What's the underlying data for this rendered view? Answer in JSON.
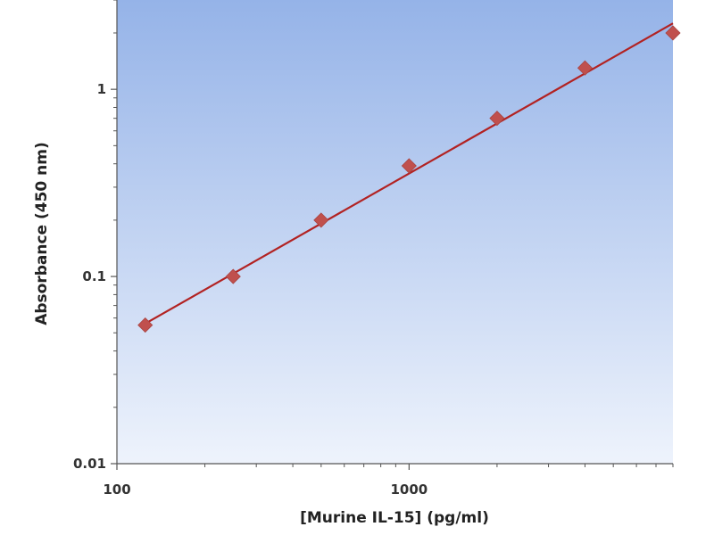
{
  "chart_data": {
    "type": "scatter",
    "title": "",
    "xlabel": "[Murine IL-15] (pg/ml)",
    "ylabel": "Absorbance (450 nm)",
    "x_scale": "log",
    "y_scale": "log",
    "xlim": [
      100,
      8000
    ],
    "ylim": [
      0.01,
      3
    ],
    "x_ticks": [
      {
        "value": 100,
        "label": "100"
      },
      {
        "value": 1000,
        "label": "1000"
      }
    ],
    "y_ticks": [
      {
        "value": 0.01,
        "label": "0.01"
      },
      {
        "value": 0.1,
        "label": "0.1"
      },
      {
        "value": 1,
        "label": "1"
      }
    ],
    "grid": false,
    "legend": "none",
    "series": [
      {
        "x": [
          125,
          250,
          500,
          1000,
          2000,
          4000,
          8000
        ],
        "y": [
          0.055,
          0.1,
          0.2,
          0.39,
          0.7,
          1.3,
          2.0
        ]
      }
    ],
    "fit_line": {
      "x": [
        125,
        8000
      ],
      "y": [
        0.056,
        2.25
      ]
    },
    "colors": {
      "marker": "#c0504d",
      "line": "#b22222",
      "bg_top": "#95b3e8",
      "bg_bottom": "#eef3fc",
      "axis": "#555555"
    }
  }
}
